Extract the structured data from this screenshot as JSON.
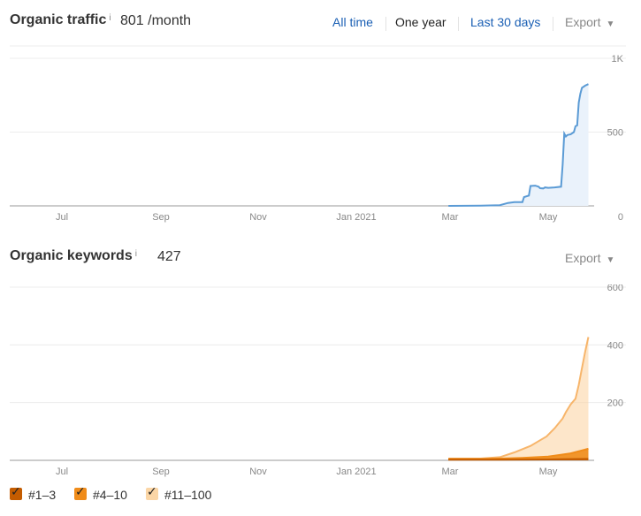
{
  "traffic": {
    "title": "Organic traffic",
    "info": "i",
    "value": "801 /month",
    "ranges": [
      "All time",
      "One year",
      "Last 30 days"
    ],
    "active_range": "One year",
    "export_label": "Export",
    "caret": "▼"
  },
  "keywords": {
    "title": "Organic keywords",
    "info": "i",
    "value": "427",
    "export_label": "Export",
    "caret": "▼"
  },
  "legend": [
    {
      "label": "#1–3",
      "color": "#c45c00",
      "check": "✓"
    },
    {
      "label": "#4–10",
      "color": "#f08c1a",
      "check": "✓"
    },
    {
      "label": "#11–100",
      "color": "#fbd6a6",
      "check": "✓"
    }
  ],
  "chart_data": [
    {
      "type": "area",
      "x_ticks": [
        "Jul",
        "Sep",
        "Nov",
        "Jan 2021",
        "Mar",
        "May"
      ],
      "y_ticks": [
        "0",
        "500",
        "1K"
      ],
      "ylim": [
        0,
        1000
      ],
      "grid": true,
      "series": [
        {
          "color": "#5b9bd5",
          "points": [
            [
              "2021-02-28",
              0
            ],
            [
              "2021-03-20",
              2
            ],
            [
              "2021-04-01",
              5
            ],
            [
              "2021-04-06",
              20
            ],
            [
              "2021-04-10",
              25
            ],
            [
              "2021-04-15",
              26
            ],
            [
              "2021-04-16",
              60
            ],
            [
              "2021-04-19",
              70
            ],
            [
              "2021-04-20",
              135
            ],
            [
              "2021-04-23",
              137
            ],
            [
              "2021-04-25",
              130
            ],
            [
              "2021-04-26",
              120
            ],
            [
              "2021-04-28",
              118
            ],
            [
              "2021-04-29",
              125
            ],
            [
              "2021-05-01",
              122
            ],
            [
              "2021-05-05",
              125
            ],
            [
              "2021-05-09",
              130
            ],
            [
              "2021-05-10",
              280
            ],
            [
              "2021-05-11",
              490
            ],
            [
              "2021-05-12",
              470
            ],
            [
              "2021-05-13",
              480
            ],
            [
              "2021-05-15",
              485
            ],
            [
              "2021-05-17",
              500
            ],
            [
              "2021-05-18",
              540
            ],
            [
              "2021-05-19",
              545
            ],
            [
              "2021-05-20",
              700
            ],
            [
              "2021-05-21",
              760
            ],
            [
              "2021-05-22",
              800
            ],
            [
              "2021-05-24",
              815
            ],
            [
              "2021-05-26",
              825
            ]
          ]
        }
      ]
    },
    {
      "type": "area",
      "stacked": true,
      "x_ticks": [
        "Jul",
        "Sep",
        "Nov",
        "Jan 2021",
        "Mar",
        "May"
      ],
      "y_ticks": [
        "200",
        "400",
        "600"
      ],
      "ylim": [
        0,
        600
      ],
      "grid": true,
      "series": [
        {
          "name": "#1–3",
          "color": "#c45c00",
          "points": [
            [
              "2021-02-28",
              2
            ],
            [
              "2021-04-01",
              2
            ],
            [
              "2021-05-01",
              3
            ],
            [
              "2021-05-26",
              5
            ]
          ]
        },
        {
          "name": "#4–10",
          "color": "#f08c1a",
          "points": [
            [
              "2021-02-28",
              3
            ],
            [
              "2021-03-20",
              3
            ],
            [
              "2021-04-01",
              4
            ],
            [
              "2021-04-15",
              6
            ],
            [
              "2021-05-01",
              10
            ],
            [
              "2021-05-15",
              20
            ],
            [
              "2021-05-26",
              35
            ]
          ]
        },
        {
          "name": "#11–100",
          "color": "#fbd6a6",
          "points": [
            [
              "2021-02-28",
              1
            ],
            [
              "2021-03-20",
              1
            ],
            [
              "2021-04-01",
              5
            ],
            [
              "2021-04-10",
              20
            ],
            [
              "2021-04-20",
              40
            ],
            [
              "2021-04-25",
              55
            ],
            [
              "2021-04-30",
              70
            ],
            [
              "2021-05-05",
              95
            ],
            [
              "2021-05-10",
              125
            ],
            [
              "2021-05-12",
              145
            ],
            [
              "2021-05-15",
              170
            ],
            [
              "2021-05-18",
              185
            ],
            [
              "2021-05-20",
              230
            ],
            [
              "2021-05-22",
              285
            ],
            [
              "2021-05-24",
              340
            ],
            [
              "2021-05-26",
              387
            ]
          ]
        }
      ]
    }
  ]
}
